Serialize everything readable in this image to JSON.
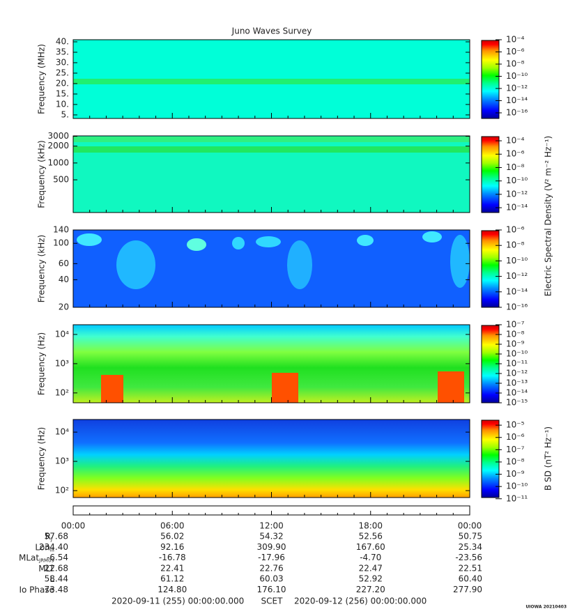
{
  "title": "Juno Waves Survey",
  "chart_data": [
    {
      "type": "spectrogram",
      "ylabel": "Frequency (MHz)",
      "yscale": "linear",
      "ylim": [
        3.3,
        41
      ],
      "yticks": [
        {
          "value": 40,
          "label": "40."
        },
        {
          "value": 35,
          "label": "35."
        },
        {
          "value": 30,
          "label": "30."
        },
        {
          "value": 25,
          "label": "25."
        },
        {
          "value": 20,
          "label": "20."
        },
        {
          "value": 15,
          "label": "15."
        },
        {
          "value": 10,
          "label": "10."
        },
        {
          "value": 5,
          "label": "5."
        }
      ],
      "clim": [
        1.2e-17,
        0.0001
      ],
      "cticks": [
        {
          "value": 0.0001,
          "label": "10⁻⁴"
        },
        {
          "value": 1e-06,
          "label": "10⁻⁶"
        },
        {
          "value": 1e-08,
          "label": "10⁻⁸"
        },
        {
          "value": 1e-10,
          "label": "10⁻¹⁰"
        },
        {
          "value": 1e-12,
          "label": "10⁻¹²"
        },
        {
          "value": 1e-14,
          "label": "10⁻¹⁴"
        },
        {
          "value": 1e-16,
          "label": "10⁻¹⁶"
        }
      ]
    },
    {
      "type": "spectrogram",
      "ylabel": "Frequency (kHz)",
      "yscale": "log",
      "ylim": [
        130,
        3050
      ],
      "yticks": [
        3000,
        2000,
        1000,
        500
      ],
      "clim": [
        1.9e-15,
        0.00054
      ],
      "cticks": [
        {
          "value": 0.0001,
          "label": "10⁻⁴"
        },
        {
          "value": 1e-06,
          "label": "10⁻⁶"
        },
        {
          "value": 1e-08,
          "label": "10⁻⁸"
        },
        {
          "value": 1e-10,
          "label": "10⁻¹⁰"
        },
        {
          "value": 1e-12,
          "label": "10⁻¹²"
        },
        {
          "value": 1e-14,
          "label": "10⁻¹⁴"
        }
      ]
    },
    {
      "type": "spectrogram",
      "ylabel": "Frequency (kHz)",
      "yscale": "log",
      "ylim": [
        20,
        140
      ],
      "yticks": [
        140,
        100,
        60,
        40,
        20
      ],
      "clim": [
        1e-16,
        1e-06
      ],
      "cticks": [
        {
          "value": 1e-06,
          "label": "10⁻⁶"
        },
        {
          "value": 1e-08,
          "label": "10⁻⁸"
        },
        {
          "value": 1e-10,
          "label": "10⁻¹⁰"
        },
        {
          "value": 1e-12,
          "label": "10⁻¹²"
        },
        {
          "value": 1e-14,
          "label": "10⁻¹⁴"
        },
        {
          "value": 1e-16,
          "label": "10⁻¹⁶"
        }
      ],
      "clabel": "Electric Spectral Density (V² m⁻² Hz⁻¹)"
    },
    {
      "type": "spectrogram",
      "ylabel": "Frequency (Hz)",
      "yscale": "log",
      "ylim": [
        46,
        21500
      ],
      "yticks": [
        {
          "value": 10000,
          "label": "10⁴"
        },
        {
          "value": 1000,
          "label": "10³"
        },
        {
          "value": 100,
          "label": "10²"
        }
      ],
      "clim": [
        1e-15,
        1e-07
      ],
      "cticks": [
        {
          "value": 1e-07,
          "label": "10⁻⁷"
        },
        {
          "value": 1e-08,
          "label": "10⁻⁸"
        },
        {
          "value": 1e-09,
          "label": "10⁻⁹"
        },
        {
          "value": 1e-10,
          "label": "10⁻¹⁰"
        },
        {
          "value": 1e-11,
          "label": "10⁻¹¹"
        },
        {
          "value": 1e-12,
          "label": "10⁻¹²"
        },
        {
          "value": 1e-13,
          "label": "10⁻¹³"
        },
        {
          "value": 1e-14,
          "label": "10⁻¹⁴"
        },
        {
          "value": 1e-15,
          "label": "10⁻¹⁵"
        }
      ]
    },
    {
      "type": "spectrogram",
      "ylabel": "Frequency (Hz)",
      "yscale": "log",
      "ylim": [
        58,
        27000
      ],
      "yticks": [
        {
          "value": 10000,
          "label": "10⁴"
        },
        {
          "value": 1000,
          "label": "10³"
        },
        {
          "value": 100,
          "label": "10²"
        }
      ],
      "clim": [
        1.26e-11,
        2.9e-05
      ],
      "cticks": [
        {
          "value": 1e-05,
          "label": "10⁻⁵"
        },
        {
          "value": 1e-06,
          "label": "10⁻⁶"
        },
        {
          "value": 1e-07,
          "label": "10⁻⁷"
        },
        {
          "value": 1e-08,
          "label": "10⁻⁸"
        },
        {
          "value": 1e-09,
          "label": "10⁻⁹"
        },
        {
          "value": 1e-10,
          "label": "10⁻¹⁰"
        },
        {
          "value": 1e-11,
          "label": "10⁻¹¹"
        }
      ],
      "clabel": "B SD (nT² Hz⁻¹)"
    }
  ],
  "time_axis": {
    "xlim": [
      0,
      24
    ],
    "xticks": [
      {
        "value": 0,
        "label": "00:00"
      },
      {
        "value": 6,
        "label": "06:00"
      },
      {
        "value": 12,
        "label": "12:00"
      },
      {
        "value": 18,
        "label": "18:00"
      },
      {
        "value": 24,
        "label": "00:00"
      }
    ],
    "xminorticks": [
      1,
      2,
      3,
      4,
      5,
      7,
      8,
      9,
      10,
      11,
      13,
      14,
      15,
      16,
      17,
      19,
      20,
      21,
      22,
      23
    ]
  },
  "ephemeris": {
    "rows": [
      {
        "label": "R",
        "sub": "J",
        "values": [
          "57.68",
          "56.02",
          "54.32",
          "52.56",
          "50.75"
        ]
      },
      {
        "label": "Lon",
        "sub": "III",
        "values": [
          "234.40",
          "92.16",
          "309.90",
          "167.60",
          "25.34"
        ]
      },
      {
        "label": "MLat",
        "sub": "JRM09",
        "values": [
          "-6.54",
          "-16.78",
          "-17.96",
          "-4.70",
          "-23.56"
        ]
      },
      {
        "label": "MLT",
        "values": [
          "22.68",
          "22.41",
          "22.76",
          "22.47",
          "22.51"
        ]
      },
      {
        "label": "L",
        "values": [
          "58.44",
          "61.12",
          "60.03",
          "52.92",
          "60.40"
        ]
      },
      {
        "label": "Io Phase",
        "values": [
          "73.48",
          "124.80",
          "176.10",
          "227.20",
          "277.90"
        ]
      }
    ]
  },
  "footer": {
    "start": "2020-09-11 (255) 00:00:00.000",
    "frame": "SCET",
    "end": "2020-09-12 (256) 00:00:00.000",
    "credit": "UIOWA 20210403"
  }
}
